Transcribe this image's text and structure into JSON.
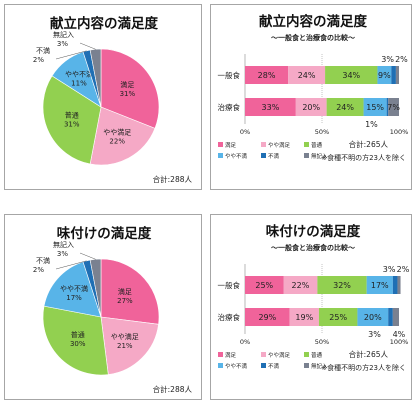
{
  "colors": {
    "satisfied": "#f0639a",
    "somewhat_satisfied": "#f5a9c6",
    "normal": "#92d050",
    "somewhat_unsatisfied": "#58b4e8",
    "unsatisfied": "#1f6fb4",
    "no_entry": "#7a8190",
    "frame": "#a6a6a6",
    "title_text": "#111111"
  },
  "chart_data": [
    {
      "type": "pie",
      "title": "献立内容の満足度",
      "total_label": "合計:288人",
      "slices": [
        {
          "label": "満足",
          "value": 31,
          "pct_label": "31%",
          "color_key": "satisfied"
        },
        {
          "label": "やや満足",
          "value": 22,
          "pct_label": "22%",
          "color_key": "somewhat_satisfied"
        },
        {
          "label": "普通",
          "value": 31,
          "pct_label": "31%",
          "color_key": "normal"
        },
        {
          "label": "やや不満",
          "value": 11,
          "pct_label": "11%",
          "color_key": "somewhat_unsatisfied"
        },
        {
          "label": "不満",
          "value": 2,
          "pct_label": "2%",
          "color_key": "unsatisfied"
        },
        {
          "label": "無記入",
          "value": 3,
          "pct_label": "3%",
          "color_key": "no_entry"
        }
      ]
    },
    {
      "type": "bar",
      "orientation": "horizontal-stacked-100",
      "title": "献立内容の満足度",
      "subtitle": "～一般食と治療食の比較～",
      "categories": [
        "一般食",
        "治療食"
      ],
      "series": [
        {
          "name": "満足",
          "color_key": "satisfied",
          "values": [
            28,
            33
          ],
          "labels": [
            "28%",
            "33%"
          ]
        },
        {
          "name": "やや満足",
          "color_key": "somewhat_satisfied",
          "values": [
            24,
            20
          ],
          "labels": [
            "24%",
            "20%"
          ]
        },
        {
          "name": "普通",
          "color_key": "normal",
          "values": [
            34,
            24
          ],
          "labels": [
            "34%",
            "24%"
          ]
        },
        {
          "name": "やや不満",
          "color_key": "somewhat_unsatisfied",
          "values": [
            9,
            15
          ],
          "labels": [
            "9%",
            "15%"
          ]
        },
        {
          "name": "不満",
          "color_key": "unsatisfied",
          "values": [
            3,
            1
          ],
          "labels": [
            "3%",
            "1%"
          ]
        },
        {
          "name": "無記入",
          "color_key": "no_entry",
          "values": [
            2,
            7
          ],
          "labels": [
            "2%",
            "7%"
          ]
        }
      ],
      "xticks": [
        "0%",
        "50%",
        "100%"
      ],
      "xlim": [
        0,
        100
      ],
      "total_label": "合計:265人",
      "note": "※食種不明の方23人を除く"
    },
    {
      "type": "pie",
      "title": "味付けの満足度",
      "total_label": "合計:288人",
      "slices": [
        {
          "label": "満足",
          "value": 27,
          "pct_label": "27%",
          "color_key": "satisfied"
        },
        {
          "label": "やや満足",
          "value": 21,
          "pct_label": "21%",
          "color_key": "somewhat_satisfied"
        },
        {
          "label": "普通",
          "value": 30,
          "pct_label": "30%",
          "color_key": "normal"
        },
        {
          "label": "やや不満",
          "value": 17,
          "pct_label": "17%",
          "color_key": "somewhat_unsatisfied"
        },
        {
          "label": "不満",
          "value": 2,
          "pct_label": "2%",
          "color_key": "unsatisfied"
        },
        {
          "label": "無記入",
          "value": 3,
          "pct_label": "3%",
          "color_key": "no_entry"
        }
      ]
    },
    {
      "type": "bar",
      "orientation": "horizontal-stacked-100",
      "title": "味付けの満足度",
      "subtitle": "～一般食と治療食の比較～",
      "categories": [
        "一般食",
        "治療食"
      ],
      "series": [
        {
          "name": "満足",
          "color_key": "satisfied",
          "values": [
            25,
            29
          ],
          "labels": [
            "25%",
            "29%"
          ]
        },
        {
          "name": "やや満足",
          "color_key": "somewhat_satisfied",
          "values": [
            22,
            19
          ],
          "labels": [
            "22%",
            "19%"
          ]
        },
        {
          "name": "普通",
          "color_key": "normal",
          "values": [
            32,
            25
          ],
          "labels": [
            "32%",
            "25%"
          ]
        },
        {
          "name": "やや不満",
          "color_key": "somewhat_unsatisfied",
          "values": [
            17,
            20
          ],
          "labels": [
            "17%",
            "20%"
          ]
        },
        {
          "name": "不満",
          "color_key": "unsatisfied",
          "values": [
            3,
            3
          ],
          "labels": [
            "3%",
            "3%"
          ]
        },
        {
          "name": "無記入",
          "color_key": "no_entry",
          "values": [
            2,
            4
          ],
          "labels": [
            "2%",
            "4%"
          ]
        }
      ],
      "xticks": [
        "0%",
        "50%",
        "100%"
      ],
      "xlim": [
        0,
        100
      ],
      "total_label": "合計:265人",
      "note": "※食種不明の方23人を除く"
    }
  ]
}
